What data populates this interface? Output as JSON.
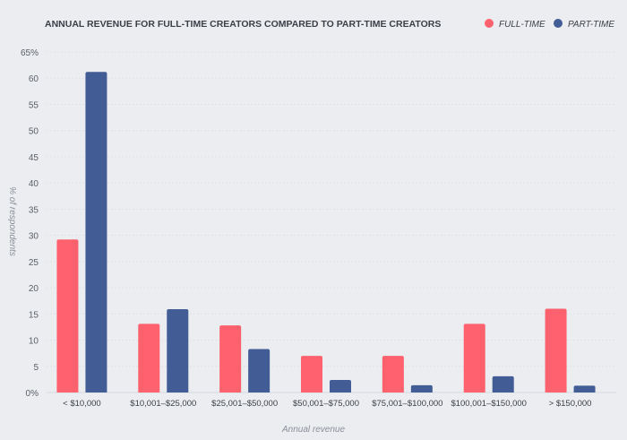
{
  "chart_data": {
    "type": "bar",
    "title": "ANNUAL REVENUE FOR FULL-TIME CREATORS COMPARED TO PART-TIME CREATORS",
    "xlabel": "Annual revenue",
    "ylabel": "% of respondents",
    "categories": [
      "< $10,000",
      "$10,001–$25,000",
      "$25,001–$50,000",
      "$50,001–$75,000",
      "$75,001–$100,000",
      "$100,001–$150,000",
      "> $150,000"
    ],
    "series": [
      {
        "name": "FULL-TIME",
        "color": "#ff626e",
        "values": [
          29.2,
          13.1,
          12.8,
          7.0,
          7.0,
          13.1,
          16.0
        ]
      },
      {
        "name": "PART-TIME",
        "color": "#425c96",
        "values": [
          61.2,
          15.9,
          8.3,
          2.4,
          1.4,
          3.1,
          1.3
        ]
      }
    ],
    "ylim": [
      0,
      65
    ],
    "yticks": [
      0,
      5,
      10,
      15,
      20,
      25,
      30,
      35,
      40,
      45,
      50,
      55,
      60,
      65
    ],
    "ytick_labels": [
      "0%",
      "5",
      "10",
      "15",
      "20",
      "25",
      "30",
      "35",
      "40",
      "45",
      "50",
      "55",
      "60",
      "65%"
    ],
    "grid": true,
    "legend_position": "top-right"
  }
}
